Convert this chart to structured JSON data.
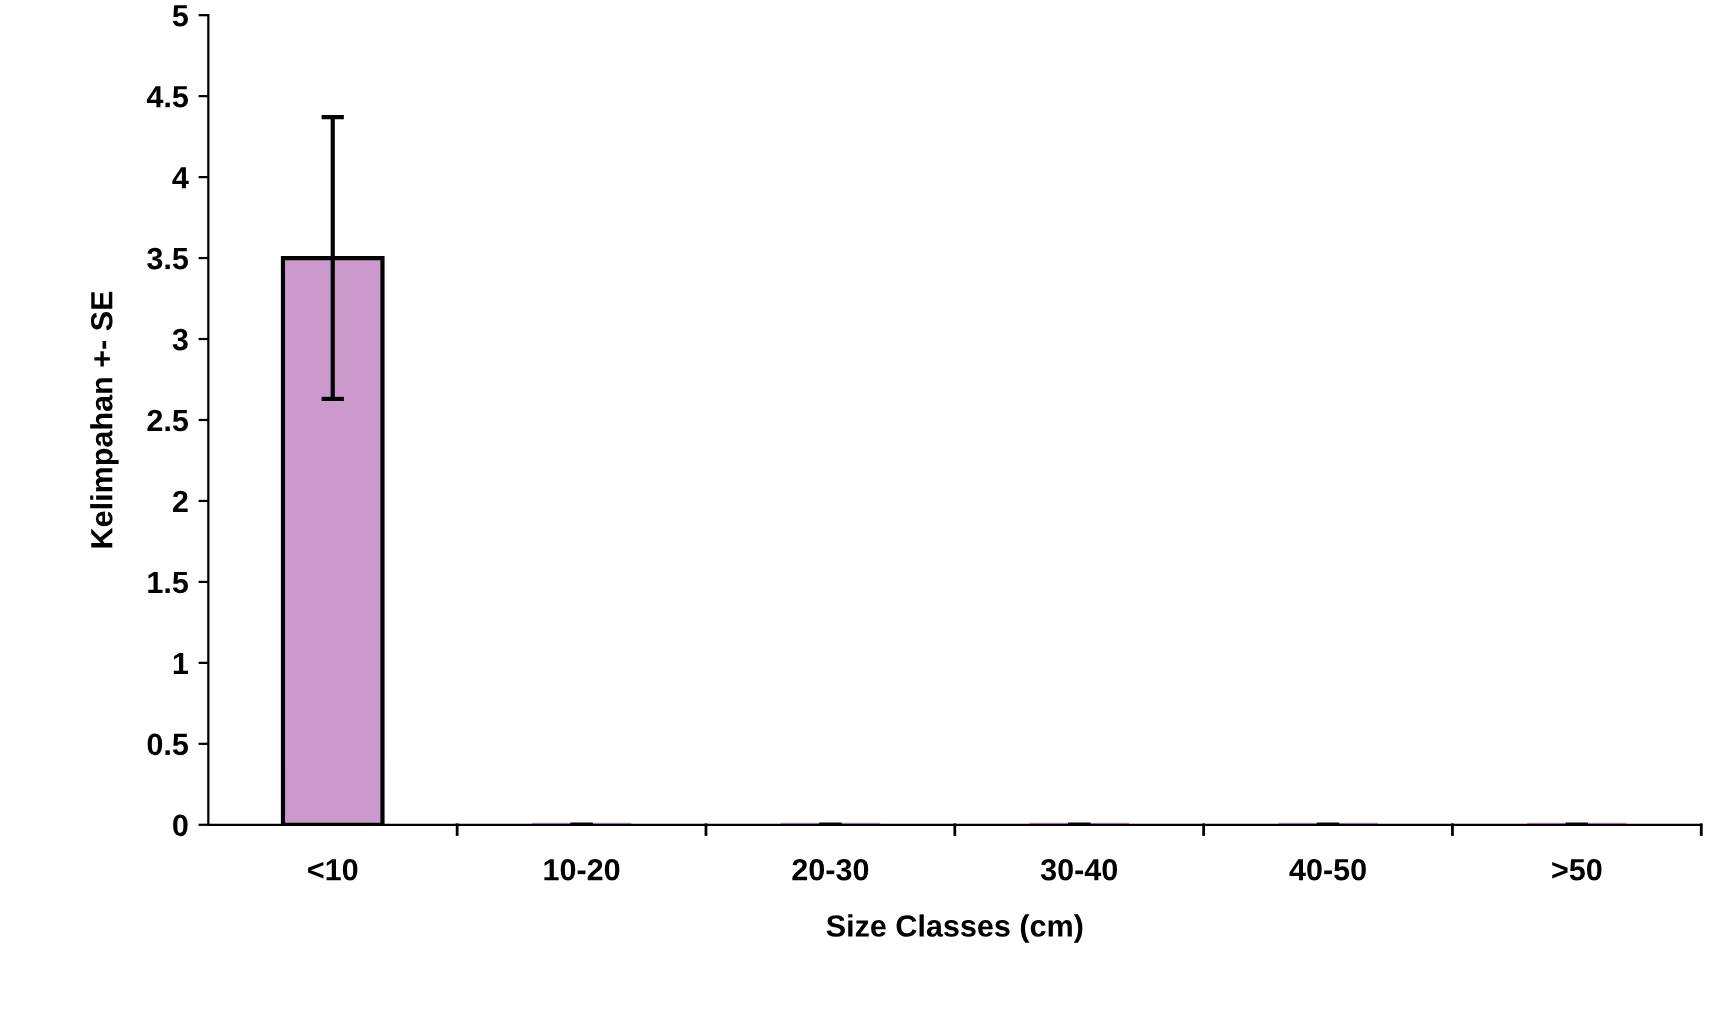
{
  "chart_data": {
    "type": "bar",
    "xlabel": "Size Classes (cm)",
    "ylabel": "Kelimpahan +- SE",
    "categories": [
      "<10",
      "10-20",
      "20-30",
      "30-40",
      "40-50",
      ">50"
    ],
    "values": [
      3.5,
      0,
      0,
      0,
      0,
      0
    ],
    "errors": [
      0.87,
      0,
      0,
      0,
      0,
      0
    ],
    "color": "#cc99cc",
    "ylim": [
      0,
      5
    ],
    "yticks": [
      0,
      0.5,
      1,
      1.5,
      2,
      2.5,
      3,
      3.5,
      4,
      4.5,
      5
    ],
    "grid": false,
    "legend": false
  }
}
